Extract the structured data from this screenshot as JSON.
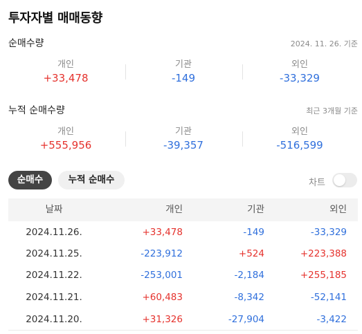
{
  "page_title": "투자자별 매매동향",
  "net": {
    "title": "순매수량",
    "date": "2024. 11. 26. 기준",
    "stats": [
      {
        "label": "개인",
        "value": "+33,478"
      },
      {
        "label": "기관",
        "value": "-149"
      },
      {
        "label": "외인",
        "value": "-33,329"
      }
    ]
  },
  "cumulative": {
    "title": "누적 순매수량",
    "note": "최근 3개월 기준",
    "stats": [
      {
        "label": "개인",
        "value": "+555,956"
      },
      {
        "label": "기관",
        "value": "-39,357"
      },
      {
        "label": "외인",
        "value": "-516,599"
      }
    ]
  },
  "tabs": {
    "net_buy": "순매수",
    "cumulative_net_buy": "누적 순매수"
  },
  "chart_toggle": {
    "label": "차트",
    "on": false
  },
  "table": {
    "headers": [
      "날짜",
      "개인",
      "기관",
      "외인"
    ],
    "rows": [
      [
        "2024.11.26.",
        "+33,478",
        "-149",
        "-33,329"
      ],
      [
        "2024.11.25.",
        "-223,912",
        "+524",
        "+223,388"
      ],
      [
        "2024.11.22.",
        "-253,001",
        "-2,184",
        "+255,185"
      ],
      [
        "2024.11.21.",
        "+60,483",
        "-8,342",
        "-52,141"
      ],
      [
        "2024.11.20.",
        "+31,326",
        "-27,904",
        "-3,422"
      ]
    ]
  },
  "colors": {
    "positive": "#e5322d",
    "negative": "#2f6fdc",
    "tab_active_bg": "#444444"
  }
}
